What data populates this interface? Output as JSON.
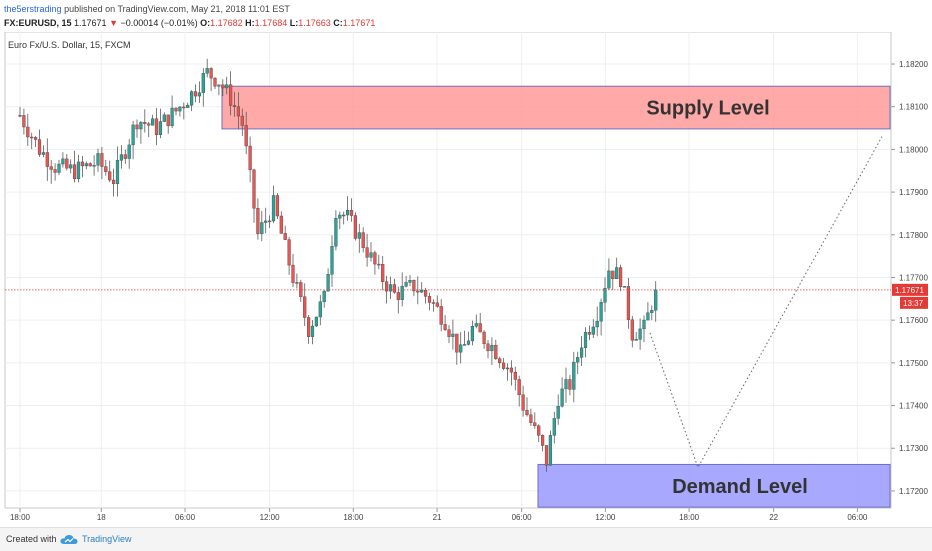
{
  "header": {
    "author": "the5erstrading",
    "published": "published on TradingView.com, May 21, 2018 11:01 EST",
    "symbol": "FX:EURUSD, 15",
    "last": "1.17671",
    "change": "−0.00014 (−0.01%)",
    "o_label": "O:",
    "o": "1.17682",
    "h_label": "H:",
    "h": "1.17684",
    "l_label": "L:",
    "l": "1.17663",
    "c_label": "C:",
    "c": "1.17671"
  },
  "chart_data": {
    "type": "candlestick",
    "title": "Euro Fx/U.S. Dollar, 15, FXCM",
    "y_ticks": [
      1.172,
      1.173,
      1.174,
      1.175,
      1.176,
      1.177,
      1.178,
      1.179,
      1.18,
      1.181,
      1.182
    ],
    "y_tick_labels": [
      "1.17200",
      "1.17300",
      "1.17400",
      "1.17500",
      "1.17600",
      "1.17700",
      "1.17800",
      "1.17900",
      "1.18000",
      "1.18100",
      "1.18200"
    ],
    "ylim": [
      1.716,
      1.18275
    ],
    "ylim_note": "",
    "x_ticks": [
      {
        "label": "18:00",
        "pos": 0.0
      },
      {
        "label": "18",
        "pos": 0.1
      },
      {
        "label": "06:00",
        "pos": 0.203
      },
      {
        "label": "12:00",
        "pos": 0.307
      },
      {
        "label": "18:00",
        "pos": 0.41
      },
      {
        "label": "21",
        "pos": 0.513
      },
      {
        "label": "06:00",
        "pos": 0.617
      },
      {
        "label": "12:00",
        "pos": 0.72
      },
      {
        "label": "18:00",
        "pos": 0.823
      },
      {
        "label": "22",
        "pos": 0.927
      },
      {
        "label": "06:00",
        "pos": 1.03
      }
    ],
    "last_price": 1.17671,
    "last_price_label": "1.17671",
    "countdown_label": "13:37",
    "up_color": "#26a69a",
    "down_color": "#ef5350",
    "price_line_color": "#e53935",
    "supply_zone": {
      "label": "Supply Level",
      "low": 1.18048,
      "high": 1.18148,
      "fill": "#ff9a9a",
      "border": "#6e6ec8"
    },
    "demand_zone": {
      "label": "Demand Level",
      "low": 1.17162,
      "high": 1.17262,
      "fill": "#9999ff",
      "border": "#6e6ec8"
    },
    "anchors": [
      [
        0,
        1.1808
      ],
      [
        5,
        1.18
      ],
      [
        9,
        1.1796
      ],
      [
        14,
        1.1795
      ],
      [
        20,
        1.1797
      ],
      [
        24,
        1.1793
      ],
      [
        30,
        1.1807
      ],
      [
        35,
        1.1805
      ],
      [
        40,
        1.1809
      ],
      [
        44,
        1.1813
      ],
      [
        48,
        1.1818
      ],
      [
        51,
        1.1816
      ],
      [
        54,
        1.1812
      ],
      [
        57,
        1.1806
      ],
      [
        61,
        1.178
      ],
      [
        65,
        1.1787
      ],
      [
        70,
        1.177
      ],
      [
        74,
        1.1758
      ],
      [
        78,
        1.1765
      ],
      [
        81,
        1.1786
      ],
      [
        84,
        1.1784
      ],
      [
        88,
        1.1778
      ],
      [
        92,
        1.1771
      ],
      [
        96,
        1.1766
      ],
      [
        101,
        1.1768
      ],
      [
        105,
        1.1765
      ],
      [
        109,
        1.176
      ],
      [
        113,
        1.1752
      ],
      [
        116,
        1.1758
      ],
      [
        121,
        1.1754
      ],
      [
        126,
        1.1748
      ],
      [
        129,
        1.174
      ],
      [
        133,
        1.1732
      ],
      [
        135,
        1.1727
      ],
      [
        138,
        1.1742
      ],
      [
        141,
        1.1745
      ],
      [
        144,
        1.1755
      ],
      [
        148,
        1.1762
      ],
      [
        151,
        1.1772
      ],
      [
        154,
        1.177
      ],
      [
        157,
        1.1757
      ],
      [
        160,
        1.1758
      ],
      [
        162,
        1.1764
      ],
      [
        163,
        1.1767
      ]
    ],
    "candle_count": 164,
    "projection": [
      [
        1.1757,
        1.17255
      ],
      [
        1.17255,
        1.1803
      ]
    ]
  },
  "footer": {
    "created": "Created with",
    "brand": "TradingView"
  }
}
